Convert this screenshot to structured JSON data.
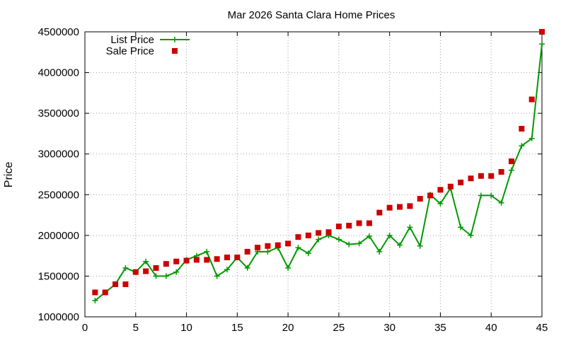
{
  "chart_data": {
    "type": "line",
    "title": "Mar 2026 Santa Clara Home Prices",
    "xlabel": "",
    "ylabel": "Price",
    "xlim": [
      0,
      45
    ],
    "ylim": [
      1000000,
      4500000
    ],
    "x_ticks": [
      0,
      5,
      10,
      15,
      20,
      25,
      30,
      35,
      40,
      45
    ],
    "y_ticks": [
      1000000,
      1500000,
      2000000,
      2500000,
      3000000,
      3500000,
      4000000,
      4500000
    ],
    "grid": true,
    "legend_position": "top-left",
    "x": [
      1,
      2,
      3,
      4,
      5,
      6,
      7,
      8,
      9,
      10,
      11,
      12,
      13,
      14,
      15,
      16,
      17,
      18,
      19,
      20,
      21,
      22,
      23,
      24,
      25,
      26,
      27,
      28,
      29,
      30,
      31,
      32,
      33,
      34,
      35,
      36,
      37,
      38,
      39,
      40,
      41,
      42,
      43,
      44,
      45
    ],
    "series": [
      {
        "name": "List Price",
        "style": "line-points",
        "color": "#009900",
        "values": [
          1200000,
          1300000,
          1400000,
          1600000,
          1550000,
          1680000,
          1500000,
          1500000,
          1550000,
          1700000,
          1750000,
          1800000,
          1500000,
          1580000,
          1730000,
          1600000,
          1800000,
          1800000,
          1850000,
          1600000,
          1850000,
          1780000,
          1950000,
          2000000,
          1950000,
          1890000,
          1900000,
          1990000,
          1800000,
          2000000,
          1880000,
          2100000,
          1870000,
          2500000,
          2390000,
          2580000,
          2100000,
          2000000,
          2490000,
          2490000,
          2400000,
          2800000,
          3100000,
          3190000,
          4350000
        ]
      },
      {
        "name": "Sale Price",
        "style": "points",
        "color": "#cc0000",
        "values": [
          1300000,
          1300000,
          1400000,
          1400000,
          1550000,
          1560000,
          1600000,
          1650000,
          1680000,
          1690000,
          1700000,
          1700000,
          1710000,
          1730000,
          1730000,
          1800000,
          1850000,
          1870000,
          1880000,
          1900000,
          1980000,
          2000000,
          2030000,
          2040000,
          2110000,
          2120000,
          2150000,
          2150000,
          2280000,
          2340000,
          2350000,
          2360000,
          2450000,
          2490000,
          2560000,
          2600000,
          2650000,
          2700000,
          2730000,
          2730000,
          2780000,
          2910000,
          3310000,
          3670000,
          4500000
        ]
      }
    ]
  }
}
